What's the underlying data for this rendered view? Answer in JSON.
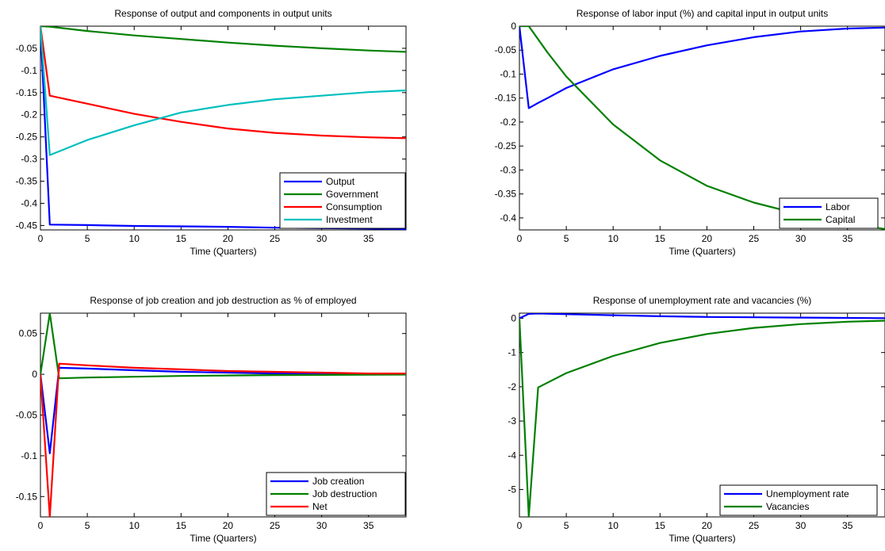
{
  "chart_data": [
    {
      "type": "line",
      "title": "Response of output and components in output units",
      "xlabel": "Time (Quarters)",
      "ylabel": "",
      "xlim": [
        0,
        39
      ],
      "ylim": [
        -0.46,
        0
      ],
      "xticks": [
        0,
        5,
        10,
        15,
        20,
        25,
        30,
        35
      ],
      "xtick_labels": [
        "0",
        "5",
        "10",
        "15",
        "20",
        "25",
        "30",
        "35"
      ],
      "yticks": [
        -0.05,
        -0.1,
        -0.15,
        -0.2,
        -0.25,
        -0.3,
        -0.35,
        -0.4,
        -0.45
      ],
      "ytick_labels": [
        "-0.05",
        "-0.1",
        "-0.15",
        "-0.2",
        "-0.25",
        "-0.3",
        "-0.35",
        "-0.4",
        "-0.45"
      ],
      "legend_position": "bottom-right",
      "grid": false,
      "series": [
        {
          "name": "Output",
          "color": "#0000ff",
          "x": [
            0,
            1,
            5,
            10,
            15,
            20,
            25,
            30,
            35,
            39
          ],
          "y": [
            0,
            -0.448,
            -0.449,
            -0.451,
            -0.452,
            -0.453,
            -0.455,
            -0.456,
            -0.457,
            -0.458
          ]
        },
        {
          "name": "Government",
          "color": "#008000",
          "x": [
            0,
            1,
            5,
            10,
            15,
            20,
            25,
            30,
            35,
            39
          ],
          "y": [
            0,
            -0.001,
            -0.011,
            -0.021,
            -0.029,
            -0.037,
            -0.044,
            -0.05,
            -0.055,
            -0.058
          ]
        },
        {
          "name": "Consumption",
          "color": "#ff0000",
          "x": [
            0,
            1,
            5,
            10,
            15,
            20,
            25,
            30,
            35,
            39
          ],
          "y": [
            0,
            -0.157,
            -0.175,
            -0.198,
            -0.216,
            -0.231,
            -0.241,
            -0.247,
            -0.251,
            -0.253
          ]
        },
        {
          "name": "Investment",
          "color": "#00bfbf",
          "x": [
            0,
            1,
            5,
            10,
            15,
            20,
            25,
            30,
            35,
            39
          ],
          "y": [
            0,
            -0.291,
            -0.257,
            -0.224,
            -0.195,
            -0.178,
            -0.165,
            -0.157,
            -0.149,
            -0.145
          ]
        }
      ]
    },
    {
      "type": "line",
      "title": "Response of labor input (%) and capital input in output units",
      "xlabel": "Time (Quarters)",
      "ylabel": "",
      "xlim": [
        0,
        39
      ],
      "ylim": [
        -0.425,
        0
      ],
      "xticks": [
        0,
        5,
        10,
        15,
        20,
        25,
        30,
        35
      ],
      "xtick_labels": [
        "0",
        "5",
        "10",
        "15",
        "20",
        "25",
        "30",
        "35"
      ],
      "yticks": [
        0,
        -0.05,
        -0.1,
        -0.15,
        -0.2,
        -0.25,
        -0.3,
        -0.35,
        -0.4
      ],
      "ytick_labels": [
        "0",
        "-0.05",
        "-0.1",
        "-0.15",
        "-0.2",
        "-0.25",
        "-0.3",
        "-0.35",
        "-0.4"
      ],
      "legend_position": "bottom-right",
      "grid": false,
      "series": [
        {
          "name": "Labor",
          "color": "#0000ff",
          "x": [
            0,
            1,
            2,
            3,
            5,
            10,
            15,
            20,
            25,
            30,
            35,
            39
          ],
          "y": [
            0,
            -0.171,
            -0.16,
            -0.15,
            -0.129,
            -0.09,
            -0.062,
            -0.04,
            -0.023,
            -0.011,
            -0.005,
            -0.003
          ]
        },
        {
          "name": "Capital",
          "color": "#008000",
          "x": [
            0,
            1,
            3,
            5,
            10,
            15,
            20,
            25,
            30,
            35,
            39
          ],
          "y": [
            0,
            0,
            -0.055,
            -0.105,
            -0.205,
            -0.28,
            -0.333,
            -0.368,
            -0.393,
            -0.412,
            -0.423
          ]
        }
      ]
    },
    {
      "type": "line",
      "title": "Response of job creation and job destruction as % of employed",
      "xlabel": "Time (Quarters)",
      "ylabel": "",
      "xlim": [
        0,
        39
      ],
      "ylim": [
        -0.175,
        0.075
      ],
      "xticks": [
        0,
        5,
        10,
        15,
        20,
        25,
        30,
        35
      ],
      "xtick_labels": [
        "0",
        "5",
        "10",
        "15",
        "20",
        "25",
        "30",
        "35"
      ],
      "yticks": [
        0.05,
        0,
        -0.05,
        -0.1,
        -0.15
      ],
      "ytick_labels": [
        "0.05",
        "0",
        "-0.05",
        "-0.1",
        "-0.15"
      ],
      "legend_position": "bottom-right",
      "grid": false,
      "series": [
        {
          "name": "Job creation",
          "color": "#0000ff",
          "x": [
            0,
            1,
            2,
            5,
            10,
            15,
            20,
            25,
            30,
            35,
            39
          ],
          "y": [
            0,
            -0.097,
            0.008,
            0.007,
            0.005,
            0.003,
            0.002,
            0.001,
            0.001,
            0.0005,
            0.0003
          ]
        },
        {
          "name": "Job destruction",
          "color": "#008000",
          "x": [
            0,
            1,
            2,
            5,
            10,
            15,
            20,
            25,
            30,
            35,
            39
          ],
          "y": [
            0,
            0.075,
            -0.005,
            -0.004,
            -0.003,
            -0.002,
            -0.0015,
            -0.001,
            -0.0008,
            -0.0005,
            -0.0004
          ]
        },
        {
          "name": "Net",
          "color": "#ff0000",
          "x": [
            0,
            1,
            2,
            5,
            10,
            15,
            20,
            25,
            30,
            35,
            39
          ],
          "y": [
            0,
            -0.175,
            0.013,
            0.011,
            0.008,
            0.006,
            0.004,
            0.003,
            0.002,
            0.001,
            0.001
          ]
        }
      ]
    },
    {
      "type": "line",
      "title": "Response of unemployment rate and vacancies (%)",
      "xlabel": "Time (Quarters)",
      "ylabel": "",
      "xlim": [
        0,
        39
      ],
      "ylim": [
        -5.8,
        0.15
      ],
      "xticks": [
        0,
        5,
        10,
        15,
        20,
        25,
        30,
        35
      ],
      "xtick_labels": [
        "0",
        "5",
        "10",
        "15",
        "20",
        "25",
        "30",
        "35"
      ],
      "yticks": [
        0,
        -1,
        -2,
        -3,
        -4,
        -5
      ],
      "ytick_labels": [
        "0",
        "-1",
        "-2",
        "-3",
        "-4",
        "-5"
      ],
      "legend_position": "bottom-right",
      "grid": false,
      "series": [
        {
          "name": "Unemployment rate",
          "color": "#0000ff",
          "x": [
            0,
            1,
            2,
            5,
            10,
            15,
            20,
            25,
            30,
            35,
            39
          ],
          "y": [
            0,
            0.13,
            0.14,
            0.12,
            0.09,
            0.06,
            0.04,
            0.03,
            0.02,
            0.01,
            0.005
          ]
        },
        {
          "name": "Vacancies",
          "color": "#008000",
          "x": [
            0,
            1,
            2,
            5,
            10,
            15,
            20,
            25,
            30,
            35,
            39
          ],
          "y": [
            0,
            -5.8,
            -2.02,
            -1.6,
            -1.1,
            -0.72,
            -0.46,
            -0.28,
            -0.17,
            -0.1,
            -0.07
          ]
        }
      ]
    }
  ]
}
